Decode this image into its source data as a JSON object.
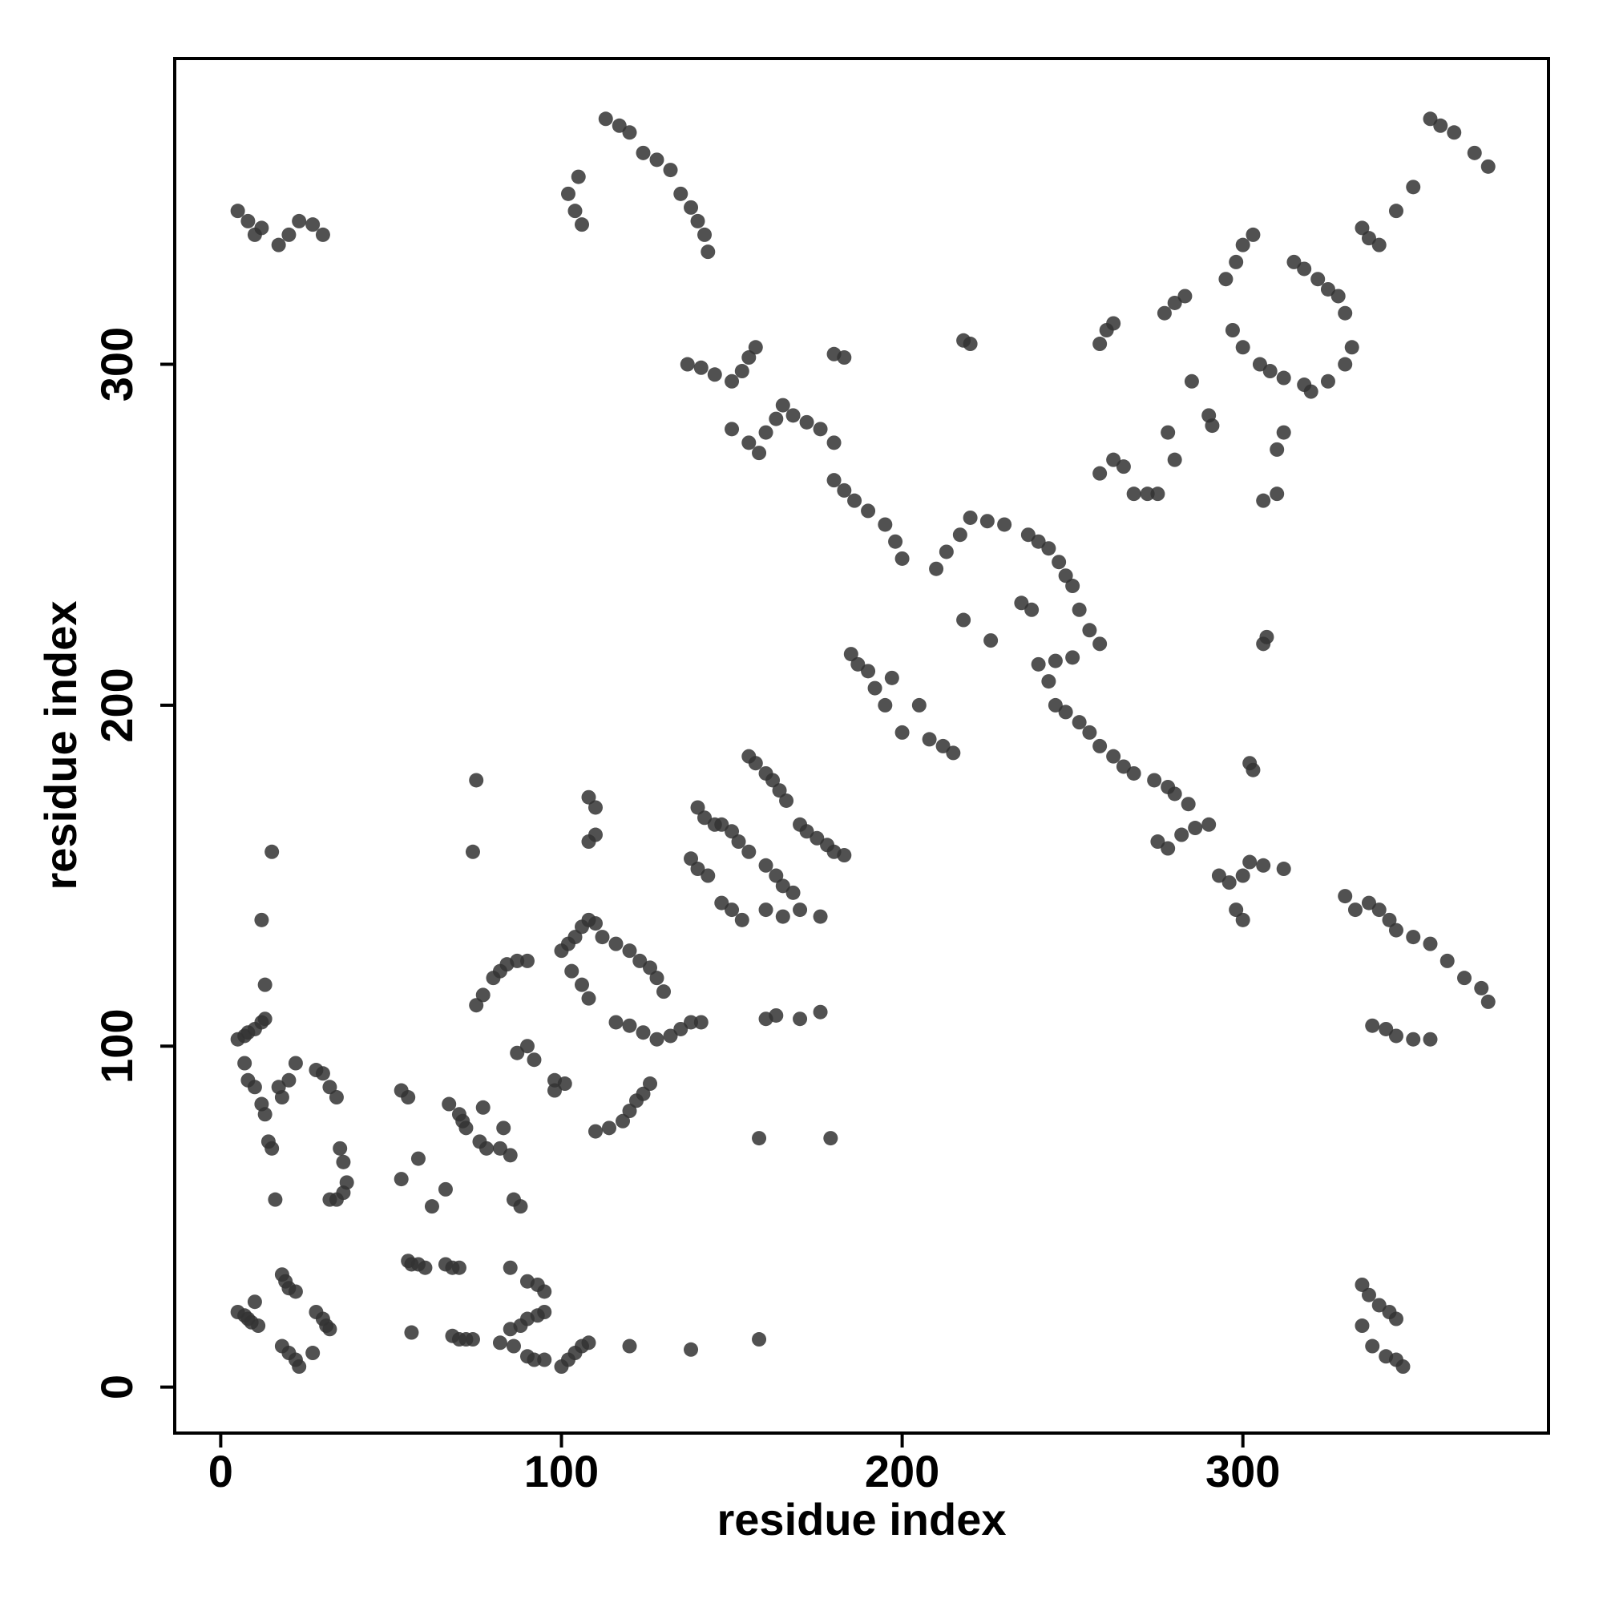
{
  "chart_data": {
    "type": "scatter",
    "x_label": "residue index",
    "y_label": "residue index",
    "xlim": [
      -13.5,
      389.7
    ],
    "ylim": [
      -13.5,
      389.7
    ],
    "xticks": [
      0,
      100,
      200,
      300
    ],
    "yticks": [
      0,
      100,
      200,
      300
    ],
    "color": "#333333",
    "series": [
      {
        "x": [
          5,
          7,
          8,
          9,
          11,
          10,
          18,
          19,
          20,
          22,
          18,
          20,
          22,
          23,
          28,
          30,
          31,
          32,
          27,
          5,
          7,
          8,
          10,
          12,
          13,
          7,
          8,
          10,
          12,
          13,
          17,
          20,
          22,
          18,
          14,
          15,
          16,
          12,
          13,
          15,
          28,
          30,
          32,
          34,
          35,
          36,
          37,
          36,
          34,
          32,
          53,
          55,
          53,
          58,
          62,
          66,
          55,
          56,
          58,
          60,
          66,
          68,
          70,
          56,
          67,
          70,
          71,
          72,
          76,
          78,
          82,
          85,
          86,
          88,
          83,
          77,
          68,
          70,
          72,
          74,
          85,
          90,
          93,
          95,
          85,
          88,
          90,
          93,
          95,
          82,
          86,
          90,
          92,
          95,
          100,
          102,
          104,
          106,
          108,
          120,
          138,
          158,
          75,
          77,
          80,
          82,
          84,
          87,
          90,
          87,
          90,
          92,
          98,
          101,
          98,
          75,
          74,
          100,
          102,
          104,
          106,
          108,
          110,
          103,
          106,
          108,
          112,
          116,
          120,
          123,
          126,
          128,
          130,
          116,
          120,
          124,
          128,
          132,
          135,
          138,
          141,
          110,
          114,
          118,
          120,
          122,
          124,
          126,
          108,
          110,
          108,
          110,
          140,
          142,
          145,
          138,
          140,
          143,
          147,
          150,
          152,
          155,
          147,
          150,
          153,
          155,
          157,
          160,
          162,
          164,
          166,
          160,
          163,
          165,
          168,
          160,
          165,
          170,
          176,
          170,
          172,
          175,
          178,
          180,
          183,
          160,
          163,
          170,
          176,
          158,
          179,
          185,
          187,
          190,
          192,
          197,
          195,
          200,
          205,
          208,
          212,
          215,
          210,
          213,
          217,
          220,
          225,
          230,
          218,
          226,
          235,
          238,
          237,
          240,
          243,
          246,
          248,
          250,
          252,
          255,
          258,
          250,
          245,
          240,
          243,
          245,
          248,
          252,
          255,
          258,
          262,
          265,
          268,
          274,
          278,
          280,
          284,
          275,
          278,
          282,
          286,
          290,
          293,
          296,
          300,
          302,
          298,
          300,
          306,
          312,
          302,
          303,
          330,
          333,
          337,
          340,
          343,
          345,
          350,
          355,
          360,
          365,
          370,
          372,
          338,
          342,
          345,
          350,
          355,
          335,
          337,
          340,
          343,
          345,
          335,
          338,
          342,
          345,
          347,
          5,
          8,
          10,
          12,
          17,
          20,
          23,
          27,
          30,
          102,
          104,
          106,
          105,
          113,
          117,
          120,
          124,
          128,
          132,
          135,
          138,
          140,
          142,
          143,
          137,
          141,
          145,
          150,
          153,
          155,
          157,
          150,
          155,
          158,
          160,
          163,
          165,
          168,
          172,
          176,
          180,
          183,
          180,
          180,
          183,
          186,
          190,
          195,
          198,
          200,
          218,
          220,
          258,
          260,
          262,
          258,
          262,
          265,
          268,
          272,
          275,
          278,
          280,
          277,
          280,
          283,
          285,
          290,
          291,
          295,
          298,
          300,
          303,
          297,
          300,
          305,
          308,
          312,
          315,
          318,
          322,
          325,
          328,
          330,
          332,
          330,
          325,
          320,
          318,
          312,
          310,
          306,
          310,
          307,
          306,
          335,
          337,
          340,
          345,
          350,
          355,
          358,
          362,
          368,
          372
        ],
        "values": [
          22,
          21,
          20,
          19,
          18,
          25,
          33,
          31,
          29,
          28,
          12,
          10,
          8,
          6,
          22,
          20,
          18,
          17,
          10,
          102,
          103,
          104,
          105,
          107,
          108,
          95,
          90,
          88,
          83,
          80,
          88,
          90,
          95,
          85,
          72,
          70,
          55,
          137,
          118,
          157,
          93,
          92,
          88,
          85,
          70,
          66,
          60,
          57,
          55,
          55,
          87,
          85,
          61,
          67,
          53,
          58,
          37,
          36,
          36,
          35,
          36,
          35,
          35,
          16,
          83,
          80,
          78,
          76,
          72,
          70,
          70,
          68,
          55,
          53,
          76,
          82,
          15,
          14,
          14,
          14,
          35,
          31,
          30,
          28,
          17,
          18,
          20,
          21,
          22,
          13,
          12,
          9,
          8,
          8,
          6,
          8,
          10,
          12,
          13,
          12,
          11,
          14,
          112,
          115,
          120,
          122,
          124,
          125,
          125,
          98,
          100,
          96,
          90,
          89,
          87,
          178,
          157,
          128,
          130,
          132,
          135,
          137,
          136,
          122,
          118,
          114,
          132,
          130,
          128,
          125,
          123,
          120,
          116,
          107,
          106,
          104,
          102,
          103,
          105,
          107,
          107,
          75,
          76,
          78,
          81,
          84,
          86,
          89,
          173,
          170,
          160,
          162,
          170,
          167,
          165,
          155,
          152,
          150,
          165,
          163,
          160,
          157,
          142,
          140,
          137,
          185,
          183,
          180,
          178,
          175,
          172,
          153,
          150,
          147,
          145,
          140,
          138,
          140,
          138,
          165,
          163,
          161,
          159,
          157,
          156,
          108,
          109,
          108,
          110,
          73,
          73,
          215,
          212,
          210,
          205,
          208,
          200,
          192,
          200,
          190,
          188,
          186,
          240,
          245,
          250,
          255,
          254,
          253,
          225,
          219,
          230,
          228,
          250,
          248,
          246,
          242,
          238,
          235,
          228,
          222,
          218,
          214,
          213,
          212,
          207,
          200,
          198,
          195,
          192,
          188,
          185,
          182,
          180,
          178,
          176,
          174,
          171,
          160,
          158,
          162,
          164,
          165,
          150,
          148,
          150,
          154,
          140,
          137,
          153,
          152,
          183,
          181,
          144,
          140,
          142,
          140,
          137,
          134,
          132,
          130,
          125,
          120,
          117,
          113,
          106,
          105,
          103,
          102,
          102,
          30,
          27,
          24,
          22,
          20,
          18,
          12,
          9,
          8,
          6,
          345,
          342,
          338,
          340,
          335,
          338,
          342,
          341,
          338,
          350,
          345,
          341,
          355,
          372,
          370,
          368,
          362,
          360,
          357,
          350,
          346,
          342,
          338,
          333,
          300,
          299,
          297,
          295,
          298,
          302,
          305,
          281,
          277,
          274,
          280,
          284,
          288,
          285,
          283,
          281,
          277,
          302,
          303,
          266,
          263,
          260,
          257,
          253,
          248,
          243,
          307,
          306,
          306,
          310,
          312,
          268,
          272,
          270,
          262,
          262,
          262,
          280,
          272,
          315,
          318,
          320,
          295,
          285,
          282,
          325,
          330,
          335,
          338,
          310,
          305,
          300,
          298,
          296,
          330,
          328,
          325,
          322,
          320,
          315,
          305,
          300,
          295,
          292,
          294,
          280,
          275,
          260,
          262,
          220,
          218,
          340,
          337,
          335,
          345,
          352,
          372,
          370,
          368,
          362,
          358
        ]
      }
    ]
  }
}
